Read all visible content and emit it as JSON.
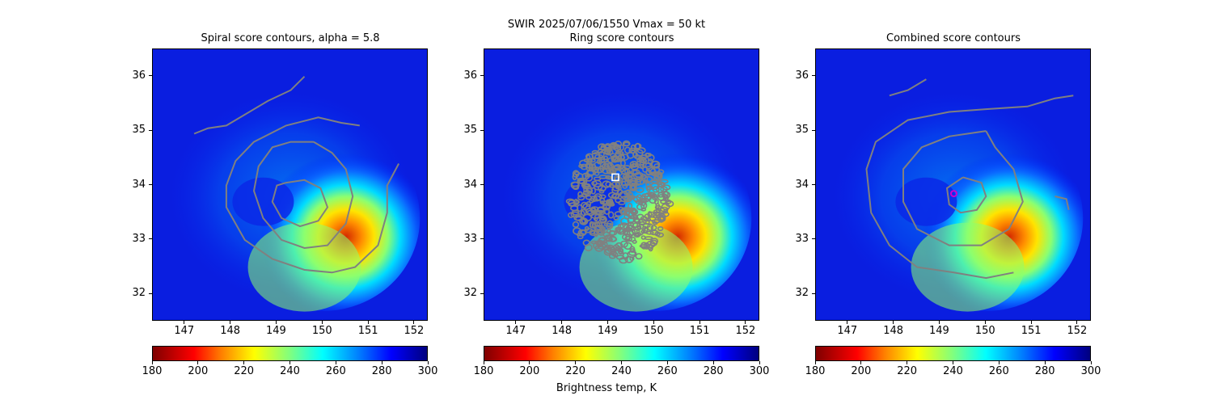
{
  "chart_data": {
    "suptitle_line1": "SWIR  2025/07/06/1550    Vmax = 50 kt",
    "colorbar_label": "Brightness temp, K",
    "colormap": "jet_reversed",
    "panels": [
      {
        "type": "heatmap",
        "title": "Spiral score contours, alpha =  5.8",
        "xlim": [
          146.3,
          152.3
        ],
        "ylim": [
          31.5,
          36.5
        ],
        "xticks": [
          "147",
          "148",
          "149",
          "150",
          "151",
          "152"
        ],
        "yticks": [
          "32",
          "33",
          "34",
          "35",
          "36"
        ],
        "colorbar_ticks": [
          "180",
          "200",
          "220",
          "240",
          "260",
          "280",
          "300"
        ],
        "colorbar_range": [
          180,
          300
        ],
        "contour_color": "#808080",
        "contours": [
          [
            [
              147.2,
              34.95
            ],
            [
              147.5,
              35.05
            ],
            [
              147.9,
              35.1
            ],
            [
              148.3,
              35.3
            ],
            [
              148.8,
              35.55
            ],
            [
              149.3,
              35.75
            ],
            [
              149.6,
              36.0
            ]
          ],
          [
            [
              150.8,
              35.1
            ],
            [
              150.4,
              35.15
            ],
            [
              149.9,
              35.25
            ],
            [
              149.2,
              35.1
            ],
            [
              148.5,
              34.8
            ],
            [
              148.1,
              34.45
            ],
            [
              147.9,
              34.0
            ],
            [
              147.9,
              33.6
            ],
            [
              148.3,
              33.0
            ],
            [
              148.9,
              32.65
            ],
            [
              149.6,
              32.45
            ],
            [
              150.2,
              32.4
            ],
            [
              150.7,
              32.5
            ],
            [
              151.2,
              32.9
            ],
            [
              151.4,
              33.5
            ],
            [
              151.4,
              34.0
            ],
            [
              151.65,
              34.4
            ]
          ],
          [
            [
              149.8,
              34.8
            ],
            [
              149.3,
              34.8
            ],
            [
              148.9,
              34.7
            ],
            [
              148.6,
              34.35
            ],
            [
              148.5,
              33.9
            ],
            [
              148.7,
              33.4
            ],
            [
              149.1,
              33.0
            ],
            [
              149.6,
              32.85
            ],
            [
              150.1,
              32.9
            ],
            [
              150.5,
              33.3
            ],
            [
              150.65,
              33.8
            ],
            [
              150.5,
              34.3
            ],
            [
              150.2,
              34.6
            ],
            [
              149.8,
              34.8
            ]
          ],
          [
            [
              149.2,
              34.05
            ],
            [
              149.6,
              34.1
            ],
            [
              149.95,
              33.95
            ],
            [
              150.1,
              33.6
            ],
            [
              149.9,
              33.35
            ],
            [
              149.5,
              33.25
            ],
            [
              149.1,
              33.4
            ],
            [
              148.9,
              33.7
            ],
            [
              149.0,
              34.0
            ],
            [
              149.2,
              34.05
            ]
          ]
        ]
      },
      {
        "type": "heatmap",
        "title": "Ring score contours",
        "xlim": [
          146.3,
          152.3
        ],
        "ylim": [
          31.5,
          36.5
        ],
        "xticks": [
          "147",
          "148",
          "149",
          "150",
          "151",
          "152"
        ],
        "yticks": [
          "32",
          "33",
          "34",
          "35",
          "36"
        ],
        "colorbar_ticks": [
          "180",
          "200",
          "220",
          "240",
          "260",
          "280",
          "300"
        ],
        "colorbar_range": [
          180,
          300
        ],
        "marker": {
          "shape": "square",
          "x": 149.15,
          "y": 34.15,
          "color": "#ffffff"
        },
        "ring_region": {
          "center": [
            149.25,
            33.7
          ],
          "radii_deg": [
            1.1,
            1.1
          ]
        }
      },
      {
        "type": "heatmap",
        "title": "Combined score contours",
        "xlim": [
          146.3,
          152.3
        ],
        "ylim": [
          31.5,
          36.5
        ],
        "xticks": [
          "147",
          "148",
          "149",
          "150",
          "151",
          "152"
        ],
        "yticks": [
          "32",
          "33",
          "34",
          "35",
          "36"
        ],
        "colorbar_ticks": [
          "180",
          "200",
          "220",
          "240",
          "260",
          "280",
          "300"
        ],
        "colorbar_range": [
          180,
          300
        ],
        "marker": {
          "shape": "circle",
          "x": 149.3,
          "y": 33.85,
          "color": "#cc00cc"
        },
        "contour_color": "#808080",
        "contours": [
          [
            [
              147.9,
              35.65
            ],
            [
              148.3,
              35.75
            ],
            [
              148.7,
              35.95
            ]
          ],
          [
            [
              151.9,
              35.65
            ],
            [
              151.5,
              35.6
            ],
            [
              150.9,
              35.45
            ],
            [
              150.0,
              35.4
            ],
            [
              149.2,
              35.35
            ],
            [
              148.3,
              35.2
            ],
            [
              147.6,
              34.8
            ],
            [
              147.4,
              34.3
            ],
            [
              147.5,
              33.5
            ],
            [
              147.9,
              32.9
            ],
            [
              148.5,
              32.5
            ],
            [
              149.3,
              32.4
            ],
            [
              150.0,
              32.3
            ],
            [
              150.6,
              32.4
            ]
          ],
          [
            [
              151.5,
              33.8
            ],
            [
              151.75,
              33.75
            ],
            [
              151.8,
              33.55
            ]
          ],
          [
            [
              150.0,
              35.0
            ],
            [
              149.2,
              34.9
            ],
            [
              148.6,
              34.7
            ],
            [
              148.2,
              34.3
            ],
            [
              148.2,
              33.7
            ],
            [
              148.5,
              33.2
            ],
            [
              149.2,
              32.9
            ],
            [
              149.9,
              32.9
            ],
            [
              150.5,
              33.2
            ],
            [
              150.8,
              33.7
            ],
            [
              150.6,
              34.3
            ],
            [
              150.2,
              34.7
            ],
            [
              150.0,
              35.0
            ]
          ],
          [
            [
              149.5,
              34.15
            ],
            [
              149.9,
              34.05
            ],
            [
              150.0,
              33.8
            ],
            [
              149.8,
              33.55
            ],
            [
              149.45,
              33.5
            ],
            [
              149.2,
              33.65
            ],
            [
              149.15,
              33.95
            ],
            [
              149.5,
              34.15
            ]
          ]
        ]
      }
    ]
  }
}
